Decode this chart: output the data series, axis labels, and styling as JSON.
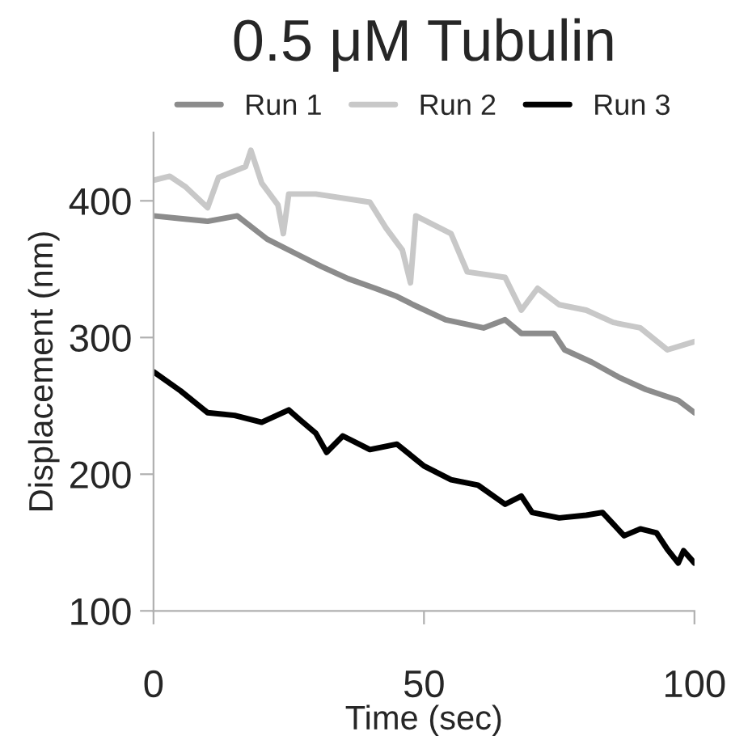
{
  "chart_data": {
    "type": "line",
    "title": "0.5 μM Tubulin",
    "xlabel": "Time (sec)",
    "ylabel": "Displacement (nm)",
    "xlim": [
      0,
      100
    ],
    "xticks": [
      0,
      50,
      100
    ],
    "ylim": [
      100,
      450
    ],
    "yticks": [
      100,
      200,
      300,
      400
    ],
    "grid": false,
    "legend": "top",
    "series": [
      {
        "name": "Run 1",
        "color": "#8c8c8c",
        "x": [
          0,
          5,
          10,
          15.5,
          21,
          26,
          31,
          36,
          41,
          45,
          48,
          54,
          61,
          65,
          68,
          74,
          76,
          81,
          86,
          91,
          97,
          100
        ],
        "values": [
          389,
          387,
          385,
          389,
          372,
          362,
          352,
          343,
          336,
          330,
          324,
          313,
          307,
          313,
          303,
          303,
          291,
          282,
          271,
          262,
          254,
          245
        ]
      },
      {
        "name": "Run 2",
        "color": "#c8c8c8",
        "x": [
          0,
          3,
          6,
          10,
          12,
          17,
          18,
          20,
          23,
          24,
          25,
          30,
          40,
          43,
          46,
          47.5,
          48.5,
          55,
          58,
          65,
          68,
          71,
          75,
          80,
          85,
          90,
          95,
          100
        ],
        "values": [
          415,
          418,
          410,
          395,
          417,
          425,
          437,
          413,
          397,
          376,
          405,
          405,
          399,
          380,
          364,
          340,
          389,
          376,
          348,
          344,
          320,
          336,
          324,
          320,
          311,
          307,
          291,
          297
        ]
      },
      {
        "name": "Run 3",
        "color": "#000000",
        "x": [
          0,
          5,
          10,
          15,
          20,
          25,
          27,
          30,
          32,
          35,
          40,
          45,
          50,
          55,
          60,
          65,
          68,
          70,
          75,
          80,
          83,
          87,
          90,
          93,
          95,
          97,
          98,
          100
        ],
        "values": [
          275,
          261,
          245,
          243,
          238,
          247,
          240,
          230,
          216,
          228,
          218,
          222,
          206,
          196,
          192,
          178,
          184,
          172,
          168,
          170,
          172,
          155,
          160,
          157,
          145,
          135,
          144,
          135
        ]
      }
    ]
  }
}
